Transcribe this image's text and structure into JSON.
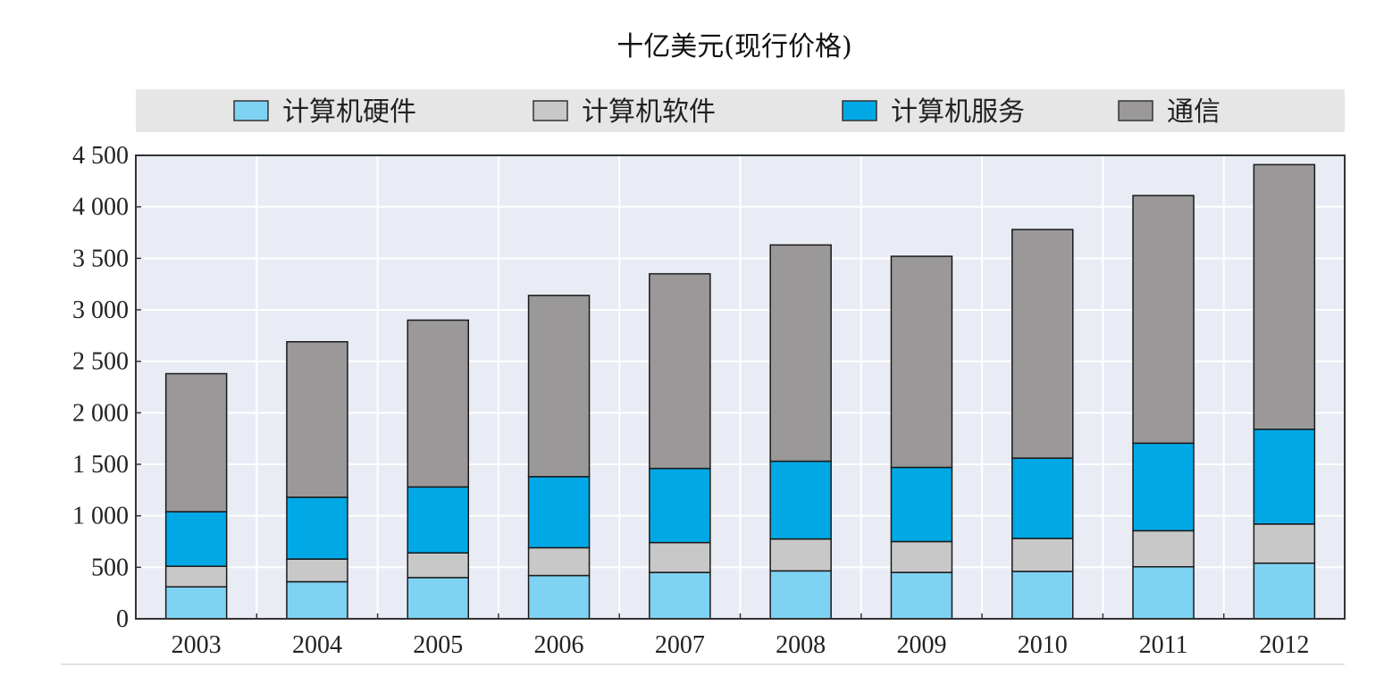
{
  "chart_data": {
    "type": "bar",
    "stacked": true,
    "title": "十亿美元(现行价格)",
    "xlabel": "",
    "ylabel": "",
    "categories": [
      "2003",
      "2004",
      "2005",
      "2006",
      "2007",
      "2008",
      "2009",
      "2010",
      "2011",
      "2012"
    ],
    "ylim": [
      0,
      4500
    ],
    "yticks": [
      0,
      500,
      1000,
      1500,
      2000,
      2500,
      3000,
      3500,
      4000,
      4500
    ],
    "ytick_labels": [
      "0",
      "500",
      "1 000",
      "1 500",
      "2 000",
      "2 500",
      "3 000",
      "3 500",
      "4 000",
      "4 500"
    ],
    "grid": true,
    "legend_position": "top",
    "series": [
      {
        "name": "计算机硬件",
        "color": "#7fd3f2",
        "values": [
          310,
          360,
          400,
          420,
          450,
          465,
          450,
          460,
          505,
          540
        ]
      },
      {
        "name": "计算机软件",
        "color": "#c8c8c8",
        "values": [
          200,
          220,
          240,
          270,
          290,
          310,
          300,
          320,
          350,
          380
        ]
      },
      {
        "name": "计算机服务",
        "color": "#00a9e6",
        "values": [
          530,
          600,
          640,
          690,
          720,
          755,
          720,
          780,
          850,
          920
        ]
      },
      {
        "name": "通信",
        "color": "#9a9899",
        "values": [
          1340,
          1510,
          1620,
          1760,
          1890,
          2100,
          2050,
          2220,
          2405,
          2570
        ]
      }
    ]
  }
}
